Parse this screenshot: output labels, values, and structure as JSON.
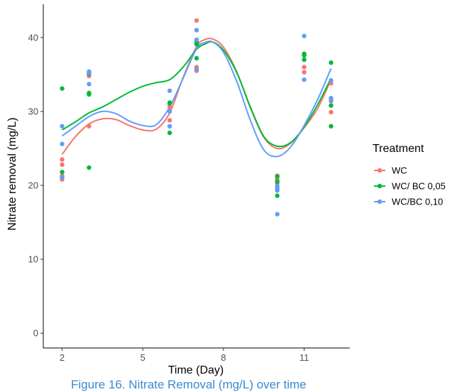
{
  "caption": "Figure 16. Nitrate Removal (mg/L) over time",
  "chart_data": {
    "type": "scatter",
    "xlabel": "Time (Day)",
    "ylabel": "Nitrate removal (mg/L)",
    "xlim": [
      1.3,
      12.7
    ],
    "ylim": [
      -2,
      44.5
    ],
    "xticks": [
      2,
      5,
      8,
      11
    ],
    "yticks": [
      0,
      10,
      20,
      30,
      40
    ],
    "grid": false,
    "legend": {
      "title": "Treatment",
      "position": "right"
    },
    "series": [
      {
        "name": "WC",
        "color": "#F8766D",
        "points": [
          [
            2,
            20.8
          ],
          [
            2,
            21.3
          ],
          [
            2,
            22.8
          ],
          [
            2,
            23.5
          ],
          [
            3,
            28.0
          ],
          [
            3,
            34.8
          ],
          [
            3,
            35.1
          ],
          [
            6,
            28.8
          ],
          [
            6,
            30.6
          ],
          [
            6,
            31.0
          ],
          [
            7,
            35.5
          ],
          [
            7,
            36.0
          ],
          [
            7,
            39.3
          ],
          [
            7,
            42.3
          ],
          [
            10,
            20.8
          ],
          [
            10,
            21.3
          ],
          [
            10,
            20.3
          ],
          [
            11,
            35.3
          ],
          [
            11,
            36.0
          ],
          [
            12,
            29.9
          ],
          [
            12,
            31.4
          ],
          [
            12,
            33.8
          ]
        ],
        "smooth": [
          [
            2,
            24.2
          ],
          [
            2.5,
            26.6
          ],
          [
            3,
            28.3
          ],
          [
            3.5,
            29.0
          ],
          [
            4,
            28.9
          ],
          [
            4.5,
            28.1
          ],
          [
            5,
            27.5
          ],
          [
            5.5,
            27.6
          ],
          [
            6,
            29.8
          ],
          [
            6.5,
            34.6
          ],
          [
            7,
            38.8
          ],
          [
            7.3,
            39.7
          ],
          [
            7.6,
            39.8
          ],
          [
            8,
            38.7
          ],
          [
            8.5,
            35.3
          ],
          [
            9,
            30.5
          ],
          [
            9.5,
            26.5
          ],
          [
            10,
            25.0
          ],
          [
            10.5,
            25.7
          ],
          [
            11,
            27.8
          ],
          [
            11.5,
            30.4
          ],
          [
            12,
            34.3
          ]
        ]
      },
      {
        "name": "WC/ BC 0,05",
        "color": "#00BA38",
        "points": [
          [
            2,
            21.8
          ],
          [
            2,
            33.1
          ],
          [
            3,
            22.4
          ],
          [
            3,
            32.3
          ],
          [
            3,
            32.5
          ],
          [
            3,
            35.1
          ],
          [
            6,
            27.1
          ],
          [
            6,
            31.1
          ],
          [
            6,
            31.2
          ],
          [
            7,
            37.2
          ],
          [
            7,
            39.1
          ],
          [
            7,
            39.4
          ],
          [
            10,
            18.6
          ],
          [
            10,
            20.5
          ],
          [
            10,
            21.2
          ],
          [
            11,
            37.0
          ],
          [
            11,
            37.6
          ],
          [
            11,
            37.8
          ],
          [
            12,
            28.0
          ],
          [
            12,
            30.8
          ],
          [
            12,
            36.6
          ]
        ],
        "smooth": [
          [
            2,
            27.5
          ],
          [
            2.5,
            28.6
          ],
          [
            3,
            29.8
          ],
          [
            3.5,
            30.6
          ],
          [
            4,
            31.6
          ],
          [
            4.5,
            32.6
          ],
          [
            5,
            33.4
          ],
          [
            5.5,
            33.9
          ],
          [
            6,
            34.3
          ],
          [
            6.5,
            36.0
          ],
          [
            7,
            38.4
          ],
          [
            7.3,
            39.1
          ],
          [
            7.6,
            39.4
          ],
          [
            8,
            38.3
          ],
          [
            8.5,
            35.2
          ],
          [
            9,
            30.6
          ],
          [
            9.5,
            26.6
          ],
          [
            10,
            25.3
          ],
          [
            10.5,
            25.8
          ],
          [
            11,
            27.9
          ],
          [
            11.5,
            30.9
          ],
          [
            12,
            34.5
          ]
        ]
      },
      {
        "name": "WC/BC 0,10",
        "color": "#619CFF",
        "points": [
          [
            2,
            21.1
          ],
          [
            2,
            25.6
          ],
          [
            2,
            28.0
          ],
          [
            3,
            33.7
          ],
          [
            3,
            35.2
          ],
          [
            3,
            35.4
          ],
          [
            6,
            28.0
          ],
          [
            6,
            30.0
          ],
          [
            6,
            32.8
          ],
          [
            7,
            35.7
          ],
          [
            7,
            39.7
          ],
          [
            7,
            41.0
          ],
          [
            10,
            16.1
          ],
          [
            10,
            19.3
          ],
          [
            10,
            19.6
          ],
          [
            10,
            19.9
          ],
          [
            11,
            34.3
          ],
          [
            11,
            40.2
          ],
          [
            12,
            31.5
          ],
          [
            12,
            31.8
          ],
          [
            12,
            34.2
          ]
        ],
        "smooth": [
          [
            2,
            26.7
          ],
          [
            2.5,
            28.0
          ],
          [
            3,
            29.3
          ],
          [
            3.5,
            30.0
          ],
          [
            4,
            29.7
          ],
          [
            4.5,
            28.7
          ],
          [
            5,
            28.1
          ],
          [
            5.5,
            28.2
          ],
          [
            6,
            30.6
          ],
          [
            6.5,
            34.5
          ],
          [
            7,
            38.5
          ],
          [
            7.3,
            39.3
          ],
          [
            7.6,
            39.4
          ],
          [
            8,
            38.0
          ],
          [
            8.5,
            34.0
          ],
          [
            9,
            28.8
          ],
          [
            9.5,
            24.8
          ],
          [
            10,
            23.9
          ],
          [
            10.5,
            25.2
          ],
          [
            11,
            28.1
          ],
          [
            11.5,
            31.6
          ],
          [
            12,
            35.8
          ]
        ]
      }
    ]
  }
}
